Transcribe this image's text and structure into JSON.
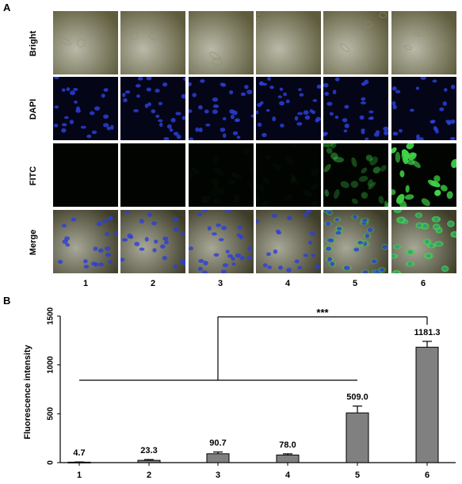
{
  "panel_a": {
    "letter": "A",
    "rows": [
      "Bright",
      "DAPI",
      "FITC",
      "Merge"
    ],
    "columns": [
      "1",
      "2",
      "3",
      "4",
      "5",
      "6"
    ],
    "fitc_intensity": [
      0.0,
      0.0,
      0.04,
      0.04,
      0.45,
      1.0
    ],
    "colors": {
      "bright": "#7a7858",
      "dapi_bg": "#050518",
      "nucleus": "#2a3fd6",
      "fitc": "#3fd447",
      "fitc_bg": "#020402"
    }
  },
  "panel_b": {
    "letter": "B",
    "significance": "***"
  },
  "chart_data": {
    "type": "bar",
    "categories": [
      "1",
      "2",
      "3",
      "4",
      "5",
      "6"
    ],
    "values": [
      4.7,
      23.3,
      90.7,
      78.0,
      509.0,
      1181.3
    ],
    "errors": [
      2,
      8,
      18,
      12,
      70,
      60
    ],
    "value_labels": [
      "4.7",
      "23.3",
      "90.7",
      "78.0",
      "509.0",
      "1181.3"
    ],
    "title": "",
    "xlabel": "",
    "ylabel": "Fluorescence intensity",
    "ylim": [
      0,
      1500
    ],
    "yticks": [
      0,
      500,
      1000,
      1500
    ],
    "bar_color": "#808080",
    "grid": false,
    "legend": "none"
  }
}
